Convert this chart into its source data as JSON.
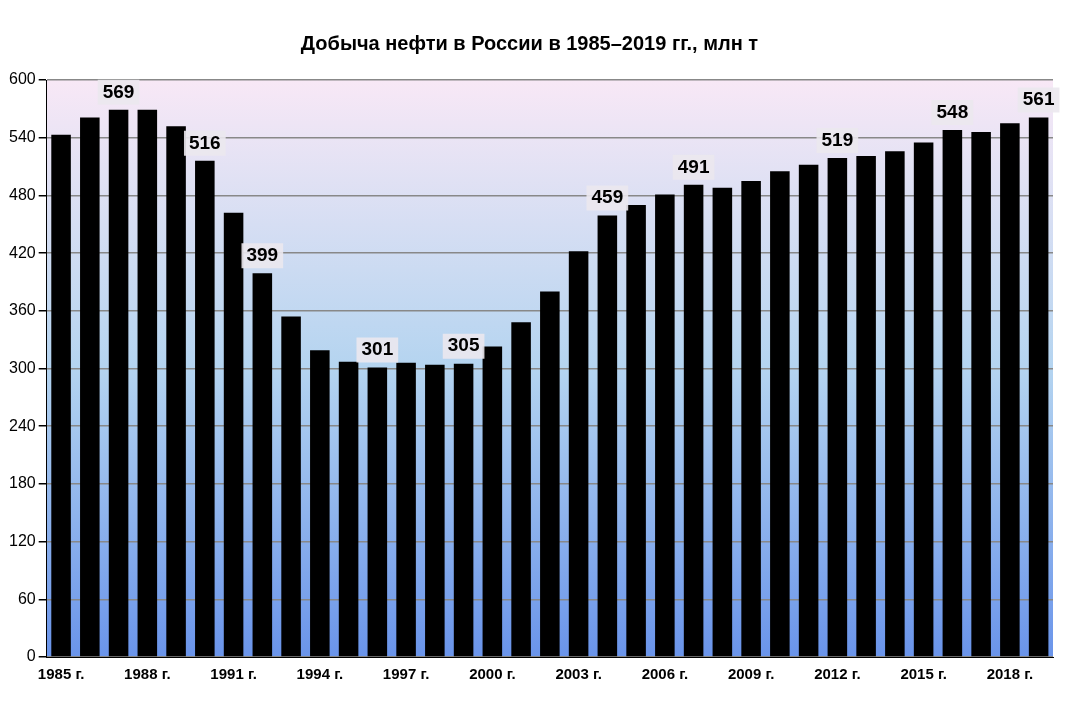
{
  "chart_data": {
    "type": "bar",
    "title": "Добыча нефти в России в 1985–2019 гг., млн т",
    "categories": [
      "1985 г.",
      null,
      null,
      "1988 г.",
      null,
      null,
      "1991 г.",
      null,
      null,
      "1994 г.",
      null,
      null,
      "1997 г.",
      null,
      null,
      "2000 г.",
      null,
      null,
      "2003 г.",
      null,
      null,
      "2006 г.",
      null,
      null,
      "2009 г.",
      null,
      null,
      "2012 г.",
      null,
      null,
      "2015 г.",
      null,
      null,
      "2018 г.",
      null
    ],
    "values": [
      543,
      561,
      569,
      569,
      552,
      516,
      462,
      399,
      354,
      319,
      307,
      301,
      306,
      304,
      305,
      323,
      348,
      380,
      422,
      459,
      470,
      481,
      491,
      488,
      495,
      505,
      512,
      519,
      521,
      526,
      535,
      548,
      546,
      555,
      561
    ],
    "value_labels": [
      null,
      null,
      "569",
      null,
      null,
      "516",
      null,
      "399",
      null,
      null,
      null,
      "301",
      null,
      null,
      "305",
      null,
      null,
      null,
      null,
      "459",
      null,
      null,
      "491",
      null,
      null,
      null,
      null,
      "519",
      null,
      null,
      null,
      "548",
      null,
      null,
      "561"
    ],
    "color": "#000000",
    "ylim": [
      0,
      600
    ],
    "yticks": [
      0,
      60,
      120,
      180,
      240,
      300,
      360,
      420,
      480,
      540,
      600
    ],
    "grid": "y",
    "legend": false
  }
}
